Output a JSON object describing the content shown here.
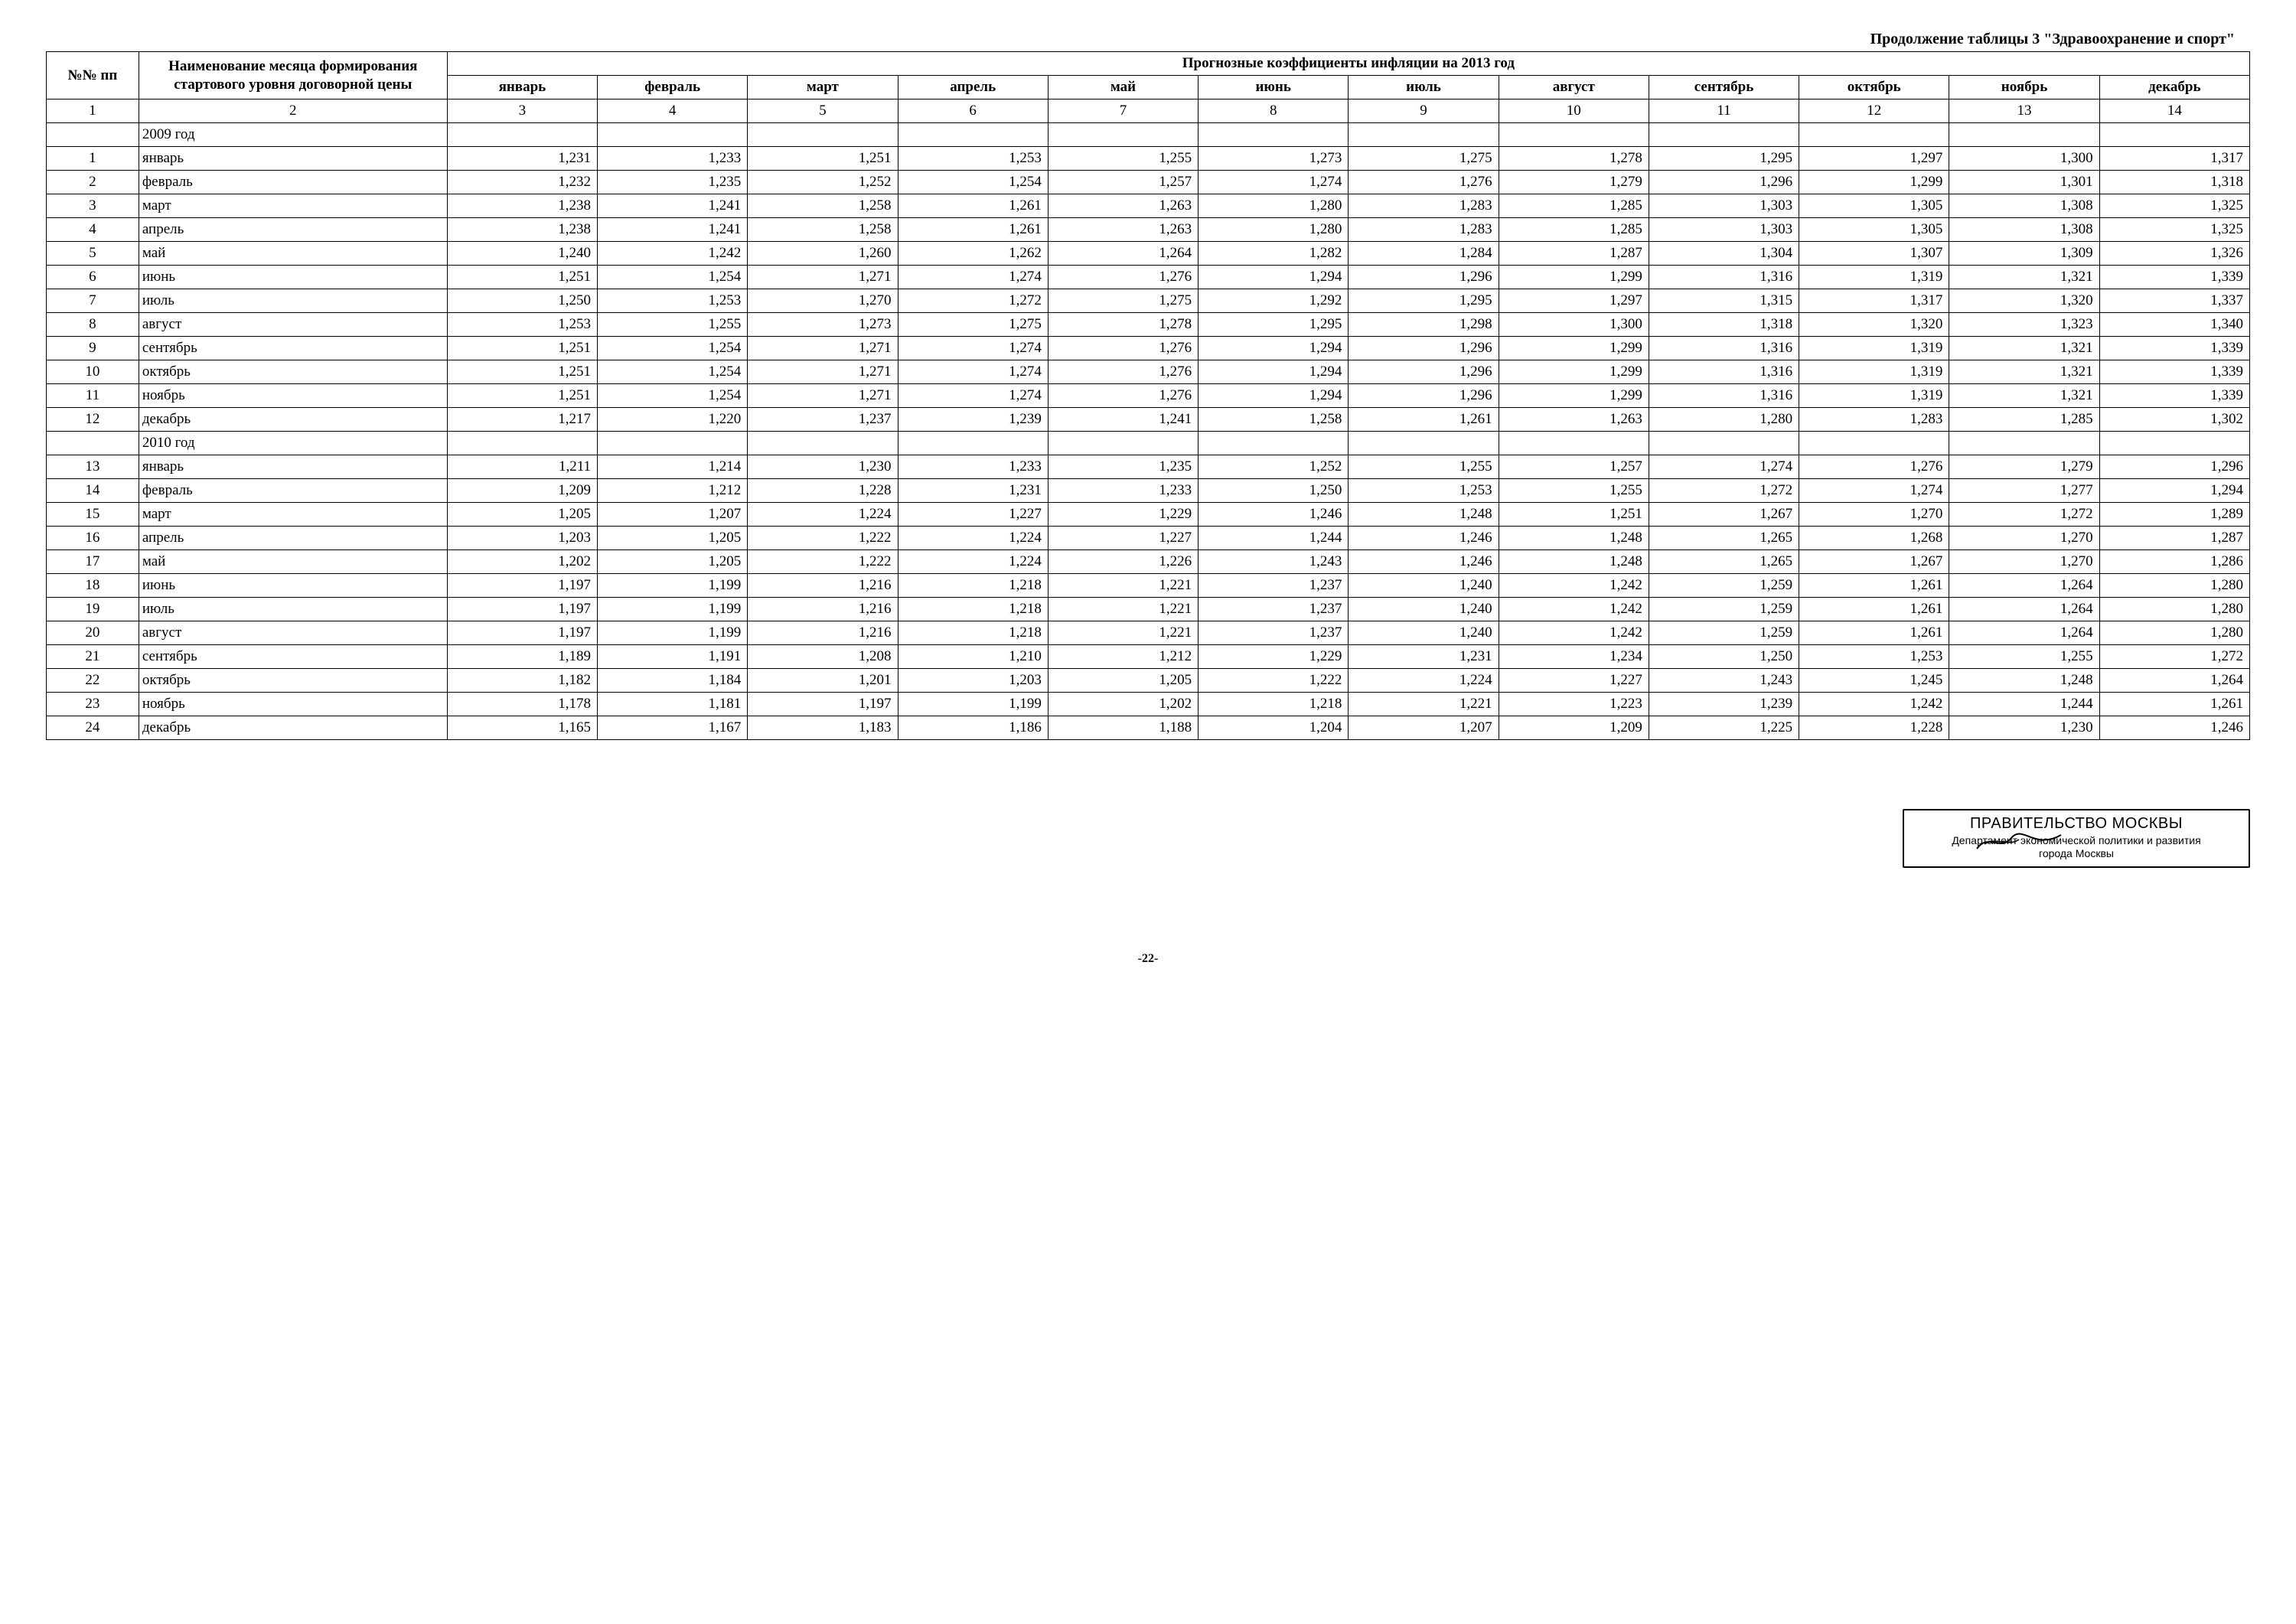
{
  "caption": "Продолжение таблицы 3 \"Здравоохранение и спорт\"",
  "header": {
    "col1": "№№ пп",
    "col2": "Наименование месяца формирования стартового уровня договорной цены",
    "group": "Прогнозные коэффициенты инфляции на 2013 год",
    "months": [
      "январь",
      "февраль",
      "март",
      "апрель",
      "май",
      "июнь",
      "июль",
      "август",
      "сентябрь",
      "октябрь",
      "ноябрь",
      "декабрь"
    ]
  },
  "colnums": [
    "1",
    "2",
    "3",
    "4",
    "5",
    "6",
    "7",
    "8",
    "9",
    "10",
    "11",
    "12",
    "13",
    "14"
  ],
  "sections": [
    {
      "title": "2009 год",
      "rows": [
        {
          "n": "1",
          "name": "январь",
          "v": [
            "1,231",
            "1,233",
            "1,251",
            "1,253",
            "1,255",
            "1,273",
            "1,275",
            "1,278",
            "1,295",
            "1,297",
            "1,300",
            "1,317"
          ]
        },
        {
          "n": "2",
          "name": "февраль",
          "v": [
            "1,232",
            "1,235",
            "1,252",
            "1,254",
            "1,257",
            "1,274",
            "1,276",
            "1,279",
            "1,296",
            "1,299",
            "1,301",
            "1,318"
          ]
        },
        {
          "n": "3",
          "name": "март",
          "v": [
            "1,238",
            "1,241",
            "1,258",
            "1,261",
            "1,263",
            "1,280",
            "1,283",
            "1,285",
            "1,303",
            "1,305",
            "1,308",
            "1,325"
          ]
        },
        {
          "n": "4",
          "name": "апрель",
          "v": [
            "1,238",
            "1,241",
            "1,258",
            "1,261",
            "1,263",
            "1,280",
            "1,283",
            "1,285",
            "1,303",
            "1,305",
            "1,308",
            "1,325"
          ]
        },
        {
          "n": "5",
          "name": "май",
          "v": [
            "1,240",
            "1,242",
            "1,260",
            "1,262",
            "1,264",
            "1,282",
            "1,284",
            "1,287",
            "1,304",
            "1,307",
            "1,309",
            "1,326"
          ]
        },
        {
          "n": "6",
          "name": "июнь",
          "v": [
            "1,251",
            "1,254",
            "1,271",
            "1,274",
            "1,276",
            "1,294",
            "1,296",
            "1,299",
            "1,316",
            "1,319",
            "1,321",
            "1,339"
          ]
        },
        {
          "n": "7",
          "name": "июль",
          "v": [
            "1,250",
            "1,253",
            "1,270",
            "1,272",
            "1,275",
            "1,292",
            "1,295",
            "1,297",
            "1,315",
            "1,317",
            "1,320",
            "1,337"
          ]
        },
        {
          "n": "8",
          "name": "август",
          "v": [
            "1,253",
            "1,255",
            "1,273",
            "1,275",
            "1,278",
            "1,295",
            "1,298",
            "1,300",
            "1,318",
            "1,320",
            "1,323",
            "1,340"
          ]
        },
        {
          "n": "9",
          "name": "сентябрь",
          "v": [
            "1,251",
            "1,254",
            "1,271",
            "1,274",
            "1,276",
            "1,294",
            "1,296",
            "1,299",
            "1,316",
            "1,319",
            "1,321",
            "1,339"
          ]
        },
        {
          "n": "10",
          "name": "октябрь",
          "v": [
            "1,251",
            "1,254",
            "1,271",
            "1,274",
            "1,276",
            "1,294",
            "1,296",
            "1,299",
            "1,316",
            "1,319",
            "1,321",
            "1,339"
          ]
        },
        {
          "n": "11",
          "name": "ноябрь",
          "v": [
            "1,251",
            "1,254",
            "1,271",
            "1,274",
            "1,276",
            "1,294",
            "1,296",
            "1,299",
            "1,316",
            "1,319",
            "1,321",
            "1,339"
          ]
        },
        {
          "n": "12",
          "name": "декабрь",
          "v": [
            "1,217",
            "1,220",
            "1,237",
            "1,239",
            "1,241",
            "1,258",
            "1,261",
            "1,263",
            "1,280",
            "1,283",
            "1,285",
            "1,302"
          ]
        }
      ]
    },
    {
      "title": "2010 год",
      "rows": [
        {
          "n": "13",
          "name": "январь",
          "v": [
            "1,211",
            "1,214",
            "1,230",
            "1,233",
            "1,235",
            "1,252",
            "1,255",
            "1,257",
            "1,274",
            "1,276",
            "1,279",
            "1,296"
          ]
        },
        {
          "n": "14",
          "name": "февраль",
          "v": [
            "1,209",
            "1,212",
            "1,228",
            "1,231",
            "1,233",
            "1,250",
            "1,253",
            "1,255",
            "1,272",
            "1,274",
            "1,277",
            "1,294"
          ]
        },
        {
          "n": "15",
          "name": "март",
          "v": [
            "1,205",
            "1,207",
            "1,224",
            "1,227",
            "1,229",
            "1,246",
            "1,248",
            "1,251",
            "1,267",
            "1,270",
            "1,272",
            "1,289"
          ]
        },
        {
          "n": "16",
          "name": "апрель",
          "v": [
            "1,203",
            "1,205",
            "1,222",
            "1,224",
            "1,227",
            "1,244",
            "1,246",
            "1,248",
            "1,265",
            "1,268",
            "1,270",
            "1,287"
          ]
        },
        {
          "n": "17",
          "name": "май",
          "v": [
            "1,202",
            "1,205",
            "1,222",
            "1,224",
            "1,226",
            "1,243",
            "1,246",
            "1,248",
            "1,265",
            "1,267",
            "1,270",
            "1,286"
          ]
        },
        {
          "n": "18",
          "name": "июнь",
          "v": [
            "1,197",
            "1,199",
            "1,216",
            "1,218",
            "1,221",
            "1,237",
            "1,240",
            "1,242",
            "1,259",
            "1,261",
            "1,264",
            "1,280"
          ]
        },
        {
          "n": "19",
          "name": "июль",
          "v": [
            "1,197",
            "1,199",
            "1,216",
            "1,218",
            "1,221",
            "1,237",
            "1,240",
            "1,242",
            "1,259",
            "1,261",
            "1,264",
            "1,280"
          ]
        },
        {
          "n": "20",
          "name": "август",
          "v": [
            "1,197",
            "1,199",
            "1,216",
            "1,218",
            "1,221",
            "1,237",
            "1,240",
            "1,242",
            "1,259",
            "1,261",
            "1,264",
            "1,280"
          ]
        },
        {
          "n": "21",
          "name": "сентябрь",
          "v": [
            "1,189",
            "1,191",
            "1,208",
            "1,210",
            "1,212",
            "1,229",
            "1,231",
            "1,234",
            "1,250",
            "1,253",
            "1,255",
            "1,272"
          ]
        },
        {
          "n": "22",
          "name": "октябрь",
          "v": [
            "1,182",
            "1,184",
            "1,201",
            "1,203",
            "1,205",
            "1,222",
            "1,224",
            "1,227",
            "1,243",
            "1,245",
            "1,248",
            "1,264"
          ]
        },
        {
          "n": "23",
          "name": "ноябрь",
          "v": [
            "1,178",
            "1,181",
            "1,197",
            "1,199",
            "1,202",
            "1,218",
            "1,221",
            "1,223",
            "1,239",
            "1,242",
            "1,244",
            "1,261"
          ]
        },
        {
          "n": "24",
          "name": "декабрь",
          "v": [
            "1,165",
            "1,167",
            "1,183",
            "1,186",
            "1,188",
            "1,204",
            "1,207",
            "1,209",
            "1,225",
            "1,228",
            "1,230",
            "1,246"
          ]
        }
      ]
    }
  ],
  "stamp": {
    "title": "ПРАВИТЕЛЬСТВО МОСКВЫ",
    "line1": "Департамент экономической политики и развития",
    "line2": "города Москвы"
  },
  "page_number": "-22-"
}
